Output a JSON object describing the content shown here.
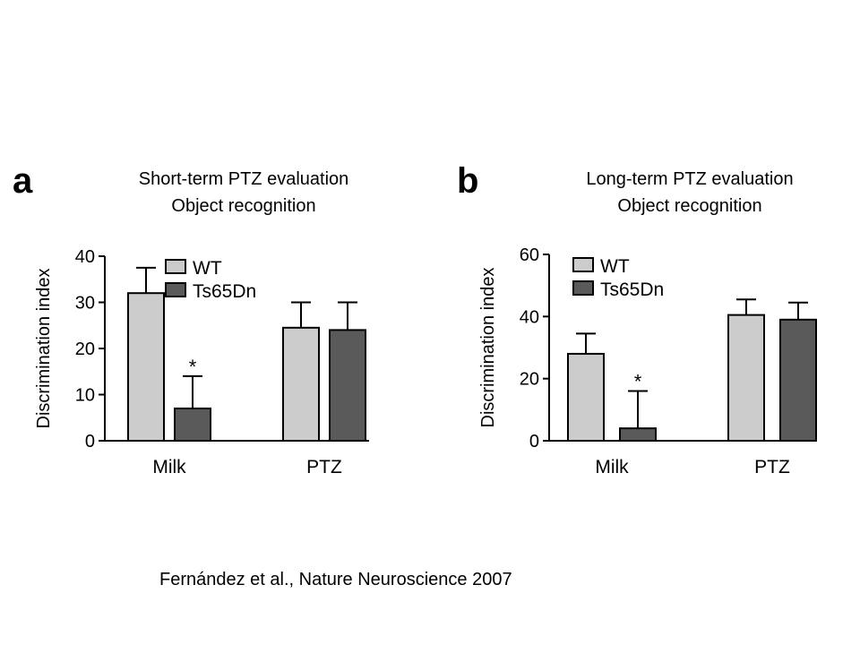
{
  "citation": "Fernández et al., Nature Neuroscience 2007",
  "colors": {
    "wt": "#cccccc",
    "ts65dn": "#5a5a5a",
    "stroke": "#000000"
  },
  "legend": [
    {
      "name": "WT",
      "color": "#cccccc"
    },
    {
      "name": "Ts65Dn",
      "color": "#5a5a5a"
    }
  ],
  "chart_data": [
    {
      "panel_label": "a",
      "type": "bar",
      "title": "Short-term PTZ evaluation",
      "subtitle": "Object recognition",
      "ylabel": "Discrimination index",
      "xlabel": "",
      "categories": [
        "Milk",
        "PTZ"
      ],
      "ylim": [
        0,
        40
      ],
      "yticks": [
        0,
        10,
        20,
        30,
        40
      ],
      "series": [
        {
          "name": "WT",
          "values": [
            32,
            24.5
          ],
          "errors": [
            5.5,
            5.5
          ]
        },
        {
          "name": "Ts65Dn",
          "values": [
            7,
            24
          ],
          "errors": [
            7,
            6
          ]
        }
      ],
      "annotations": [
        {
          "text": "*",
          "category": "Milk",
          "series": "Ts65Dn"
        }
      ],
      "legend_position": "top-left",
      "grid": false
    },
    {
      "panel_label": "b",
      "type": "bar",
      "title": "Long-term PTZ evaluation",
      "subtitle": "Object recognition",
      "ylabel": "Discrimination index",
      "xlabel": "",
      "categories": [
        "Milk",
        "PTZ"
      ],
      "ylim": [
        0,
        60
      ],
      "yticks": [
        0,
        20,
        40,
        60
      ],
      "series": [
        {
          "name": "WT",
          "values": [
            28,
            40.5
          ],
          "errors": [
            6.5,
            5
          ]
        },
        {
          "name": "Ts65Dn",
          "values": [
            4,
            39
          ],
          "errors": [
            12,
            5.5
          ]
        }
      ],
      "annotations": [
        {
          "text": "*",
          "category": "Milk",
          "series": "Ts65Dn"
        }
      ],
      "legend_position": "top-left",
      "grid": false
    }
  ]
}
